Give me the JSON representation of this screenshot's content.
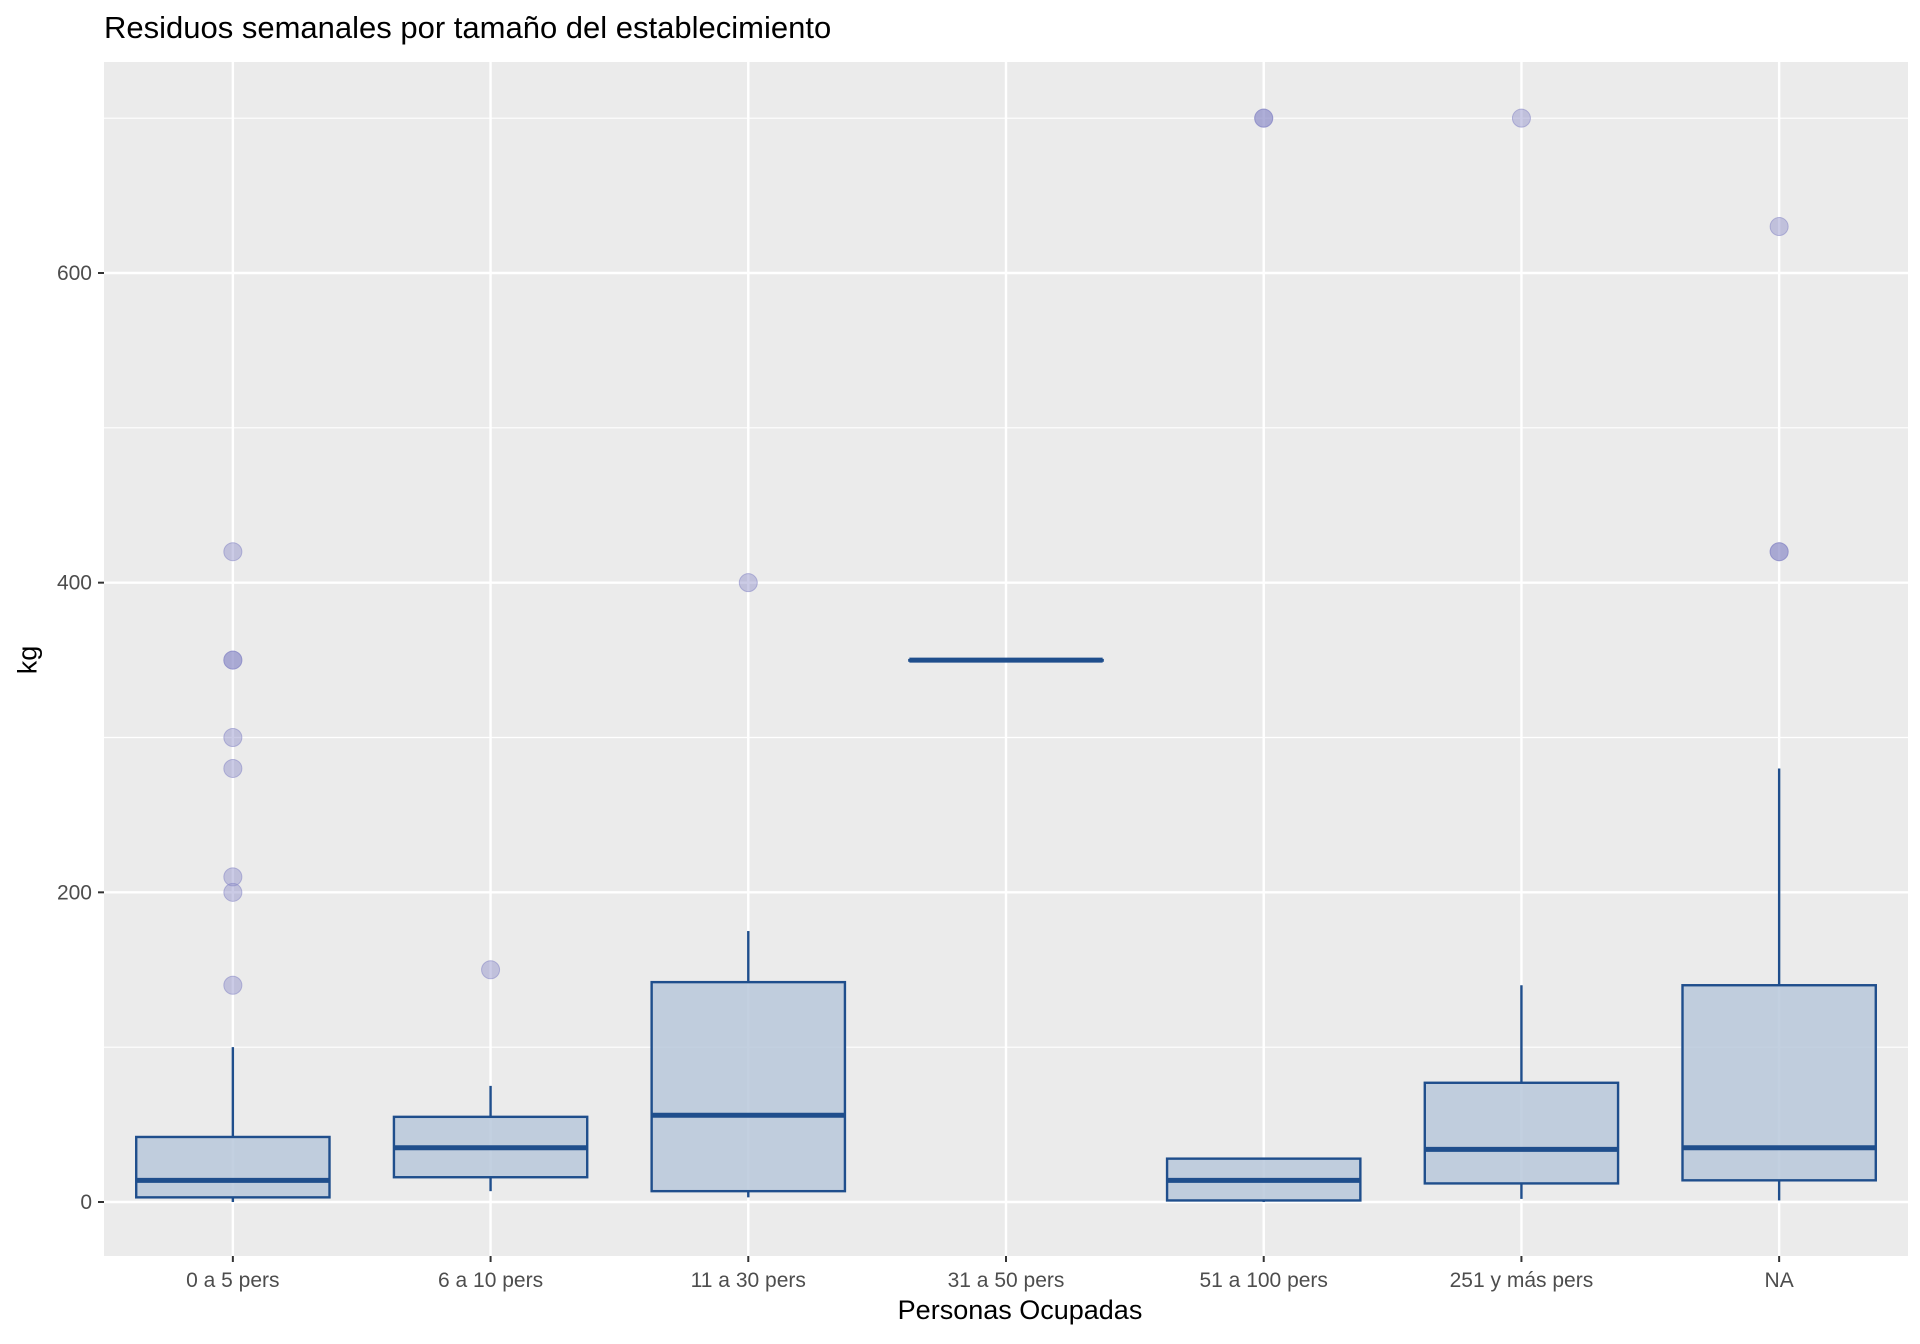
{
  "chart_data": {
    "type": "boxplot",
    "title": "Residuos semanales por tamaño del establecimiento",
    "xlabel": "Personas Ocupadas",
    "ylabel": "kg",
    "ylim": [
      -34,
      735
    ],
    "yticks": [
      0,
      200,
      400,
      600
    ],
    "grid": true,
    "legend": "none",
    "colors": {
      "panel": "#EBEBEB",
      "grid": "#FFFFFF",
      "box_stroke": "#1F4E8C",
      "box_fill": "#B9C8DA",
      "outlier": "#8C8CC8"
    },
    "categories": [
      "0 a 5 pers",
      "6 a 10 pers",
      "11 a 30 pers",
      "31 a 50 pers",
      "51 a 100 pers",
      "251 y más pers",
      "NA"
    ],
    "boxes": [
      {
        "category": "0 a 5 pers",
        "min": 0,
        "q1": 3,
        "median": 14,
        "q3": 42,
        "max": 100,
        "outliers": [
          140,
          200,
          210,
          280,
          300,
          350,
          350,
          420
        ]
      },
      {
        "category": "6 a 10 pers",
        "min": 7,
        "q1": 16,
        "median": 35,
        "q3": 55,
        "max": 75,
        "outliers": [
          150
        ]
      },
      {
        "category": "11 a 30 pers",
        "min": 3,
        "q1": 7,
        "median": 56,
        "q3": 142,
        "max": 175,
        "outliers": [
          400
        ]
      },
      {
        "category": "31 a 50 pers",
        "min": 350,
        "q1": 350,
        "median": 350,
        "q3": 350,
        "max": 350,
        "outliers": []
      },
      {
        "category": "51 a 100 pers",
        "min": 0,
        "q1": 1,
        "median": 14,
        "q3": 28,
        "max": 28,
        "outliers": [
          700,
          700
        ]
      },
      {
        "category": "251 y más pers",
        "min": 2,
        "q1": 12,
        "median": 34,
        "q3": 77,
        "max": 140,
        "outliers": [
          700
        ]
      },
      {
        "category": "NA",
        "min": 1,
        "q1": 14,
        "median": 35,
        "q3": 140,
        "max": 280,
        "outliers": [
          420,
          420,
          630
        ]
      }
    ]
  }
}
